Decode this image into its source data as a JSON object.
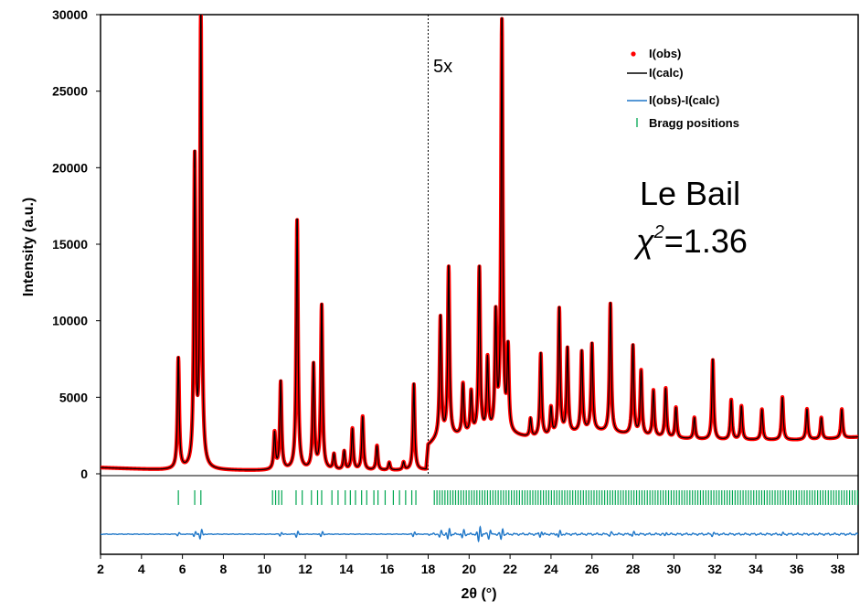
{
  "chart_data": {
    "type": "line",
    "xlabel": "2θ (°)",
    "ylabel": "Intensity (a.u.)",
    "xlim": [
      2,
      39
    ],
    "ylim": [
      0,
      30000
    ],
    "xticks": [
      2,
      4,
      6,
      8,
      10,
      12,
      14,
      16,
      18,
      20,
      22,
      24,
      26,
      28,
      30,
      32,
      34,
      36,
      38
    ],
    "yticks": [
      0,
      5000,
      10000,
      15000,
      20000,
      25000,
      30000
    ],
    "split_x": 18,
    "split_label": "5x",
    "annotation_line1": "Le Bail",
    "annotation_chi_symbol": "χ",
    "annotation_chi_sup": "2",
    "annotation_chi_value": "=1.36",
    "legend_position": "top-right",
    "colors": {
      "obs": "#ff0000",
      "calc": "#000000",
      "diff": "#1f77c8",
      "bragg": "#00a651"
    },
    "series": [
      {
        "name": "I(obs)"
      },
      {
        "name": "I(calc)"
      },
      {
        "name": "I(obs)-I(calc)"
      },
      {
        "name": "Bragg positions"
      }
    ],
    "baseline": [
      [
        2,
        400
      ],
      [
        5,
        250
      ],
      [
        10,
        200
      ],
      [
        17.9,
        200
      ],
      [
        18,
        1800
      ],
      [
        18.5,
        2300
      ],
      [
        20,
        2500
      ],
      [
        22,
        2500
      ],
      [
        23,
        2300
      ],
      [
        24,
        2400
      ],
      [
        26,
        2800
      ],
      [
        28,
        2500
      ],
      [
        30,
        2300
      ],
      [
        32,
        2200
      ],
      [
        34,
        2200
      ],
      [
        36,
        2200
      ],
      [
        38,
        2300
      ],
      [
        39,
        2400
      ]
    ],
    "peaks": [
      {
        "x": 5.8,
        "h": 7200
      },
      {
        "x": 6.6,
        "h": 20000
      },
      {
        "x": 6.9,
        "h": 29400
      },
      {
        "x": 10.5,
        "h": 2400
      },
      {
        "x": 10.8,
        "h": 5700
      },
      {
        "x": 11.6,
        "h": 16300
      },
      {
        "x": 12.4,
        "h": 6800
      },
      {
        "x": 12.8,
        "h": 10700
      },
      {
        "x": 13.4,
        "h": 1000
      },
      {
        "x": 13.9,
        "h": 1200
      },
      {
        "x": 14.3,
        "h": 2700
      },
      {
        "x": 14.8,
        "h": 3500
      },
      {
        "x": 15.5,
        "h": 1600
      },
      {
        "x": 16.1,
        "h": 500
      },
      {
        "x": 16.8,
        "h": 500
      },
      {
        "x": 17.3,
        "h": 5600
      },
      {
        "x": 18.6,
        "h": 7800
      },
      {
        "x": 19.0,
        "h": 11000
      },
      {
        "x": 19.7,
        "h": 3300
      },
      {
        "x": 20.1,
        "h": 2700
      },
      {
        "x": 20.5,
        "h": 10800
      },
      {
        "x": 20.9,
        "h": 4800
      },
      {
        "x": 21.3,
        "h": 7500
      },
      {
        "x": 21.6,
        "h": 26800
      },
      {
        "x": 21.9,
        "h": 5300
      },
      {
        "x": 23.0,
        "h": 1200
      },
      {
        "x": 23.5,
        "h": 5400
      },
      {
        "x": 24.0,
        "h": 1800
      },
      {
        "x": 24.4,
        "h": 8200
      },
      {
        "x": 24.8,
        "h": 5500
      },
      {
        "x": 25.5,
        "h": 5200
      },
      {
        "x": 26.0,
        "h": 5600
      },
      {
        "x": 26.9,
        "h": 8400
      },
      {
        "x": 28.0,
        "h": 5800
      },
      {
        "x": 28.4,
        "h": 4200
      },
      {
        "x": 29.0,
        "h": 3000
      },
      {
        "x": 29.6,
        "h": 3200
      },
      {
        "x": 30.1,
        "h": 2000
      },
      {
        "x": 31.0,
        "h": 1400
      },
      {
        "x": 31.9,
        "h": 5200
      },
      {
        "x": 32.8,
        "h": 2600
      },
      {
        "x": 33.3,
        "h": 2200
      },
      {
        "x": 34.3,
        "h": 2000
      },
      {
        "x": 35.3,
        "h": 2800
      },
      {
        "x": 36.5,
        "h": 2000
      },
      {
        "x": 37.2,
        "h": 1400
      },
      {
        "x": 38.2,
        "h": 1900
      }
    ],
    "bragg_positions": [
      5.8,
      6.6,
      6.9,
      10.4,
      10.55,
      10.7,
      10.85,
      11.55,
      11.85,
      12.3,
      12.6,
      12.8,
      13.3,
      13.6,
      13.95,
      14.2,
      14.45,
      14.75,
      15.0,
      15.35,
      15.55,
      15.9,
      16.3,
      16.6,
      16.9,
      17.2,
      17.4
    ],
    "bragg_dense_start": 18.3,
    "bragg_dense_step": 0.13,
    "bragg_end": 39,
    "diff_spikes": [
      {
        "x": 5.8,
        "a": 0.35
      },
      {
        "x": 6.6,
        "a": 0.5
      },
      {
        "x": 6.9,
        "a": 1.0
      },
      {
        "x": 10.8,
        "a": 0.4
      },
      {
        "x": 11.6,
        "a": 0.6
      },
      {
        "x": 12.8,
        "a": 0.5
      },
      {
        "x": 17.3,
        "a": 0.5
      },
      {
        "x": 18.6,
        "a": 0.8
      },
      {
        "x": 19.0,
        "a": 1.1
      },
      {
        "x": 19.7,
        "a": 0.9
      },
      {
        "x": 20.5,
        "a": 1.6
      },
      {
        "x": 21.0,
        "a": 1.0
      },
      {
        "x": 21.6,
        "a": 1.3
      },
      {
        "x": 23.5,
        "a": 0.5
      },
      {
        "x": 24.4,
        "a": 0.6
      },
      {
        "x": 26.9,
        "a": 0.5
      },
      {
        "x": 28.0,
        "a": 0.4
      },
      {
        "x": 29.6,
        "a": 0.5
      },
      {
        "x": 31.9,
        "a": 0.4
      },
      {
        "x": 35.3,
        "a": 0.3
      }
    ]
  }
}
